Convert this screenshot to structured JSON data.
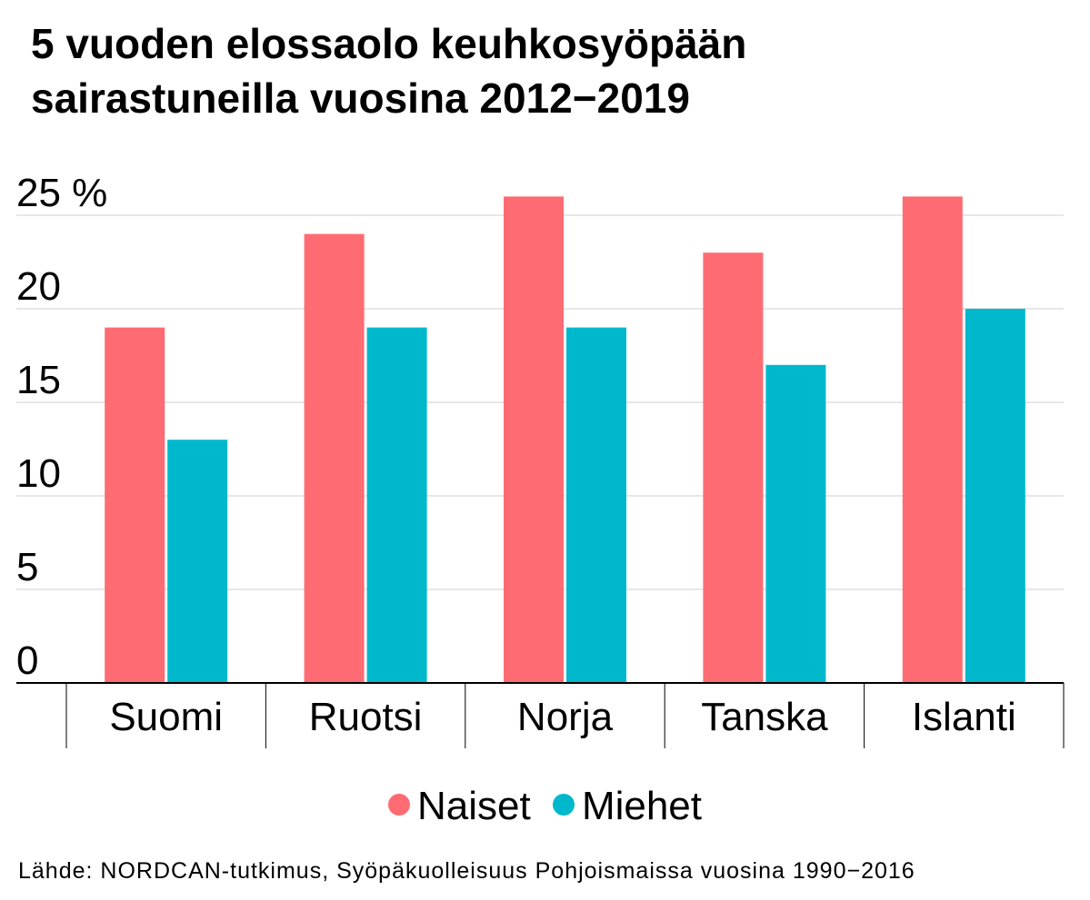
{
  "title_lines": [
    "5 vuoden elossaolo keuhkosyöpään",
    "sairastuneilla vuosina 2012−2019"
  ],
  "source": "Lähde:  NORDCAN-tutkimus, Syöpäkuolleisuus Pohjoismaissa vuosina 1990−2016",
  "colors": {
    "naiset": "#ff6b72",
    "miehet": "#00b8cc"
  },
  "legend": [
    {
      "label": "Naiset",
      "color": "#ff6b72"
    },
    {
      "label": "Miehet",
      "color": "#00b8cc"
    }
  ],
  "chart_data": {
    "type": "bar",
    "title": "5 vuoden elossaolo keuhkosyöpään sairastuneilla vuosina 2012−2019",
    "categories": [
      "Suomi",
      "Ruotsi",
      "Norja",
      "Tanska",
      "Islanti"
    ],
    "series": [
      {
        "name": "Naiset",
        "values": [
          19,
          24,
          26,
          23,
          26
        ]
      },
      {
        "name": "Miehet",
        "values": [
          13,
          19,
          19,
          17,
          20
        ]
      }
    ],
    "yticks": [
      "0",
      "5",
      "10",
      "15",
      "20",
      "25 %"
    ],
    "ylim": [
      0,
      25
    ],
    "grid": true,
    "legend_position": "bottom"
  }
}
